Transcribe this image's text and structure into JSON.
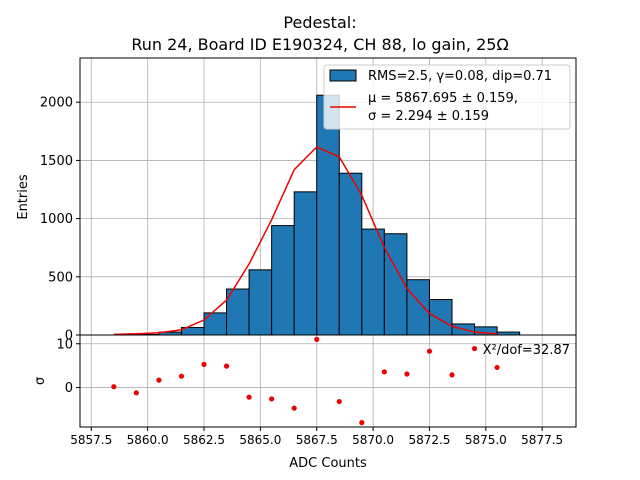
{
  "colors": {
    "bar_fill": "#1f77b4",
    "bar_edge": "#000000",
    "fit_line": "#ee0000",
    "residual_point": "#ee0000",
    "grid": "#b0b0b0",
    "legend_border": "#cccccc"
  },
  "chart_data": [
    {
      "type": "bar",
      "panel": "top",
      "title": "Pedestal:",
      "subtitle": "Run 24, Board ID E190324, CH 88, lo gain, 25Ω",
      "xlabel": "",
      "ylabel": "Entries",
      "xlim": [
        5857,
        5879
      ],
      "ylim": [
        0,
        2380
      ],
      "grid": true,
      "yticks": [
        0,
        500,
        1000,
        1500,
        2000
      ],
      "ytick_labels": [
        "0",
        "500",
        "1000",
        "1500",
        "2000"
      ],
      "bins": [
        {
          "x0": 5859.5,
          "x1": 5860.5,
          "value": 5
        },
        {
          "x0": 5860.5,
          "x1": 5861.5,
          "value": 25
        },
        {
          "x0": 5861.5,
          "x1": 5862.5,
          "value": 65
        },
        {
          "x0": 5862.5,
          "x1": 5863.5,
          "value": 190
        },
        {
          "x0": 5863.5,
          "x1": 5864.5,
          "value": 395
        },
        {
          "x0": 5864.5,
          "x1": 5865.5,
          "value": 560
        },
        {
          "x0": 5865.5,
          "x1": 5866.5,
          "value": 940
        },
        {
          "x0": 5866.5,
          "x1": 5867.5,
          "value": 1230
        },
        {
          "x0": 5867.5,
          "x1": 5868.5,
          "value": 2060
        },
        {
          "x0": 5868.5,
          "x1": 5869.5,
          "value": 1390
        },
        {
          "x0": 5869.5,
          "x1": 5870.5,
          "value": 910
        },
        {
          "x0": 5870.5,
          "x1": 5871.5,
          "value": 870
        },
        {
          "x0": 5871.5,
          "x1": 5872.5,
          "value": 475
        },
        {
          "x0": 5872.5,
          "x1": 5873.5,
          "value": 305
        },
        {
          "x0": 5873.5,
          "x1": 5874.5,
          "value": 95
        },
        {
          "x0": 5874.5,
          "x1": 5875.5,
          "value": 70
        },
        {
          "x0": 5875.5,
          "x1": 5876.5,
          "value": 25
        }
      ],
      "series": [
        {
          "name": "RMS=2.5, γ=0.08, dip=0.71",
          "kind": "histogram"
        },
        {
          "name": "fit",
          "kind": "line",
          "legend_line1": "μ = 5867.695 ± 0.159,",
          "legend_line2": "σ = 2.294 ± 0.159",
          "x": [
            5858.5,
            5859.5,
            5860.5,
            5861.5,
            5862.5,
            5863.5,
            5864.5,
            5865.5,
            5866.5,
            5867.5,
            5868.5,
            5869.5,
            5870.5,
            5871.5,
            5872.5,
            5873.5,
            5874.5,
            5875.5
          ],
          "y": [
            5,
            10,
            20,
            45,
            130,
            300,
            610,
            990,
            1420,
            1615,
            1530,
            1200,
            750,
            400,
            185,
            75,
            25,
            10
          ]
        }
      ],
      "legend_position": "top-right"
    },
    {
      "type": "scatter",
      "panel": "bottom",
      "xlabel": "ADC Counts",
      "ylabel": "σ",
      "xlim": [
        5857,
        5879
      ],
      "ylim": [
        -9,
        12
      ],
      "grid": true,
      "yticks": [
        0,
        10
      ],
      "ytick_labels": [
        "0",
        "10"
      ],
      "xticks": [
        5857.5,
        5860,
        5862.5,
        5865,
        5867.5,
        5870,
        5872.5,
        5875,
        5877.5
      ],
      "xtick_labels": [
        "5857.5",
        "5860.0",
        "5862.5",
        "5865.0",
        "5867.5",
        "5870.0",
        "5872.5",
        "5875.0",
        "5877.5"
      ],
      "annotation": "X²/dof=32.87",
      "x": [
        5858.5,
        5859.5,
        5860.5,
        5861.5,
        5862.5,
        5863.5,
        5864.5,
        5865.5,
        5866.5,
        5867.5,
        5868.5,
        5869.5,
        5870.5,
        5871.5,
        5872.5,
        5873.5,
        5874.5,
        5875.5
      ],
      "y": [
        0.2,
        -1.2,
        1.7,
        2.6,
        5.3,
        4.9,
        -2.2,
        -2.6,
        -4.7,
        11.0,
        -3.2,
        -8.0,
        3.6,
        3.1,
        8.3,
        2.9,
        8.9,
        4.6
      ]
    }
  ]
}
